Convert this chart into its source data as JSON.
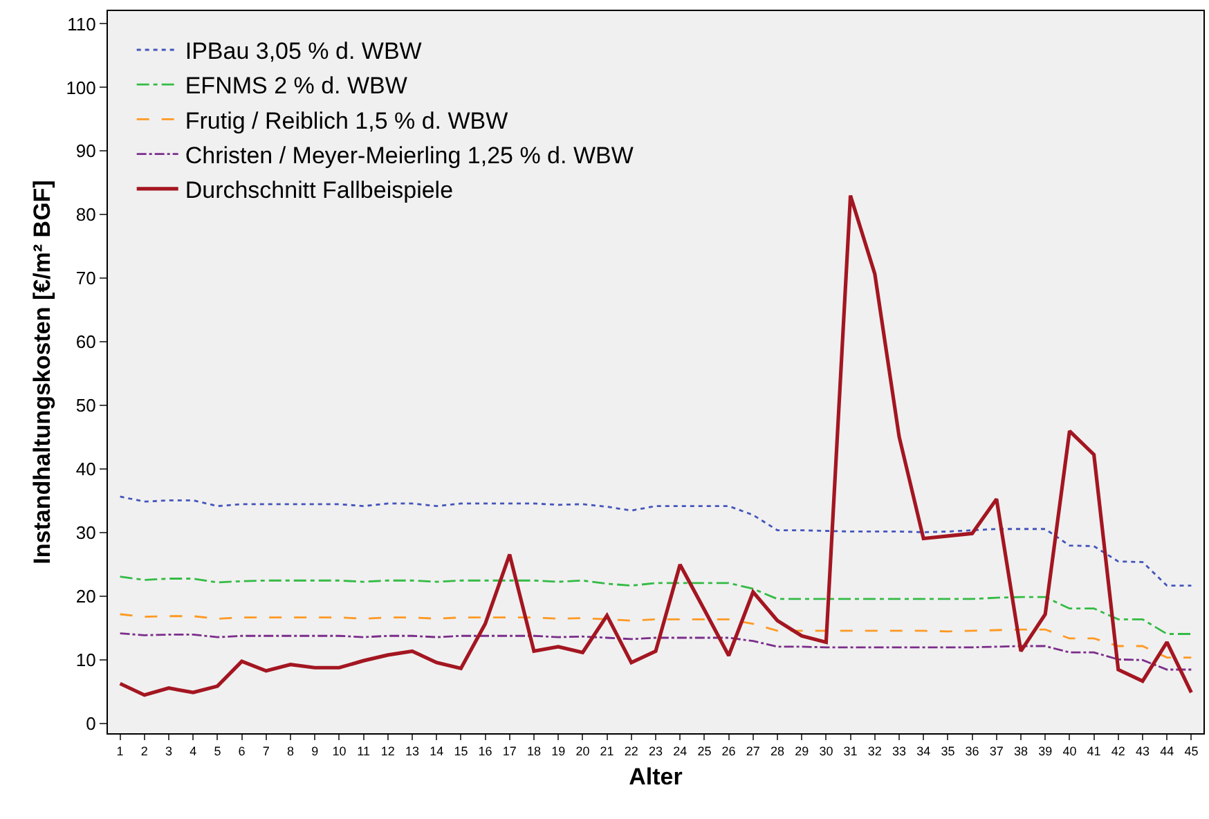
{
  "chart_data": {
    "type": "line",
    "xlabel": "Alter",
    "ylabel": "Instandhaltungskosten [€/m² BGF]",
    "x": [
      1,
      2,
      3,
      4,
      5,
      6,
      7,
      8,
      9,
      10,
      11,
      12,
      13,
      14,
      15,
      16,
      17,
      18,
      19,
      20,
      21,
      22,
      23,
      24,
      25,
      26,
      27,
      28,
      29,
      30,
      31,
      32,
      33,
      34,
      35,
      36,
      37,
      38,
      39,
      40,
      41,
      42,
      43,
      44,
      45
    ],
    "xlim": [
      0.5,
      45.5
    ],
    "xticks": [
      1,
      2,
      3,
      4,
      5,
      6,
      7,
      8,
      9,
      10,
      11,
      12,
      13,
      14,
      15,
      16,
      17,
      18,
      19,
      20,
      21,
      22,
      23,
      24,
      25,
      26,
      27,
      28,
      29,
      30,
      31,
      32,
      33,
      34,
      35,
      36,
      37,
      38,
      39,
      40,
      41,
      42,
      43,
      44,
      45
    ],
    "ylim": [
      -1.5,
      112
    ],
    "yticks": [
      0,
      10,
      20,
      30,
      40,
      50,
      60,
      70,
      80,
      90,
      100,
      110
    ],
    "grid": false,
    "legend": "top left",
    "marker": "none",
    "series": [
      {
        "name": "IPBau 3,05 % d. WBW",
        "color": "#4455bb",
        "line_style": "dotted",
        "values": [
          35.7,
          34.9,
          35.1,
          35.1,
          34.2,
          34.5,
          34.5,
          34.5,
          34.5,
          34.5,
          34.2,
          34.6,
          34.6,
          34.2,
          34.6,
          34.6,
          34.6,
          34.6,
          34.4,
          34.5,
          34.1,
          33.5,
          34.2,
          34.2,
          34.2,
          34.2,
          32.8,
          30.4,
          30.4,
          30.3,
          30.2,
          30.2,
          30.2,
          30.1,
          30.2,
          30.4,
          30.6,
          30.6,
          30.6,
          28.0,
          27.9,
          25.5,
          25.4,
          21.7,
          21.7
        ]
      },
      {
        "name": "EFNMS 2 % d. WBW",
        "color": "#33bb44",
        "line_style": "dashdot",
        "values": [
          23.1,
          22.6,
          22.8,
          22.8,
          22.2,
          22.4,
          22.5,
          22.5,
          22.5,
          22.5,
          22.3,
          22.5,
          22.5,
          22.3,
          22.5,
          22.5,
          22.5,
          22.5,
          22.3,
          22.5,
          22.0,
          21.7,
          22.1,
          22.1,
          22.1,
          22.1,
          21.2,
          19.6,
          19.6,
          19.6,
          19.6,
          19.6,
          19.6,
          19.6,
          19.6,
          19.6,
          19.8,
          19.9,
          19.9,
          18.1,
          18.1,
          16.4,
          16.4,
          14.1,
          14.1
        ]
      },
      {
        "name": "Frutig / Reiblich 1,5 % d. WBW",
        "color": "#ff9922",
        "line_style": "dashed",
        "values": [
          17.2,
          16.8,
          16.9,
          16.9,
          16.5,
          16.7,
          16.7,
          16.7,
          16.7,
          16.7,
          16.5,
          16.7,
          16.7,
          16.5,
          16.7,
          16.7,
          16.7,
          16.7,
          16.5,
          16.6,
          16.4,
          16.2,
          16.4,
          16.4,
          16.4,
          16.4,
          15.7,
          14.6,
          14.6,
          14.6,
          14.6,
          14.6,
          14.6,
          14.6,
          14.5,
          14.6,
          14.7,
          14.8,
          14.8,
          13.4,
          13.4,
          12.2,
          12.2,
          10.4,
          10.4
        ]
      },
      {
        "name": "Christen / Meyer-Meierling 1,25 % d. WBW",
        "color": "#7b2d8b",
        "line_style": "longdashdot",
        "values": [
          14.2,
          13.9,
          14.0,
          14.0,
          13.6,
          13.8,
          13.8,
          13.8,
          13.8,
          13.8,
          13.6,
          13.8,
          13.8,
          13.6,
          13.8,
          13.8,
          13.8,
          13.8,
          13.6,
          13.7,
          13.5,
          13.3,
          13.5,
          13.5,
          13.5,
          13.5,
          13.0,
          12.1,
          12.1,
          12.0,
          12.0,
          12.0,
          12.0,
          12.0,
          12.0,
          12.0,
          12.1,
          12.2,
          12.2,
          11.2,
          11.2,
          10.1,
          10.0,
          8.5,
          8.5
        ]
      },
      {
        "name": "Durchschnitt Fallbeispiele",
        "color": "#a31621",
        "line_style": "solid",
        "values": [
          6.3,
          4.5,
          5.6,
          4.9,
          5.9,
          9.8,
          8.3,
          9.3,
          8.8,
          8.8,
          9.9,
          10.8,
          11.4,
          9.6,
          8.7,
          15.7,
          26.6,
          11.4,
          12.1,
          11.2,
          17.0,
          9.6,
          11.4,
          25.0,
          17.9,
          10.7,
          20.7,
          16.2,
          13.8,
          12.8,
          83.0,
          70.7,
          45.1,
          29.1,
          29.5,
          29.9,
          35.3,
          11.4,
          17.2,
          46.0,
          42.3,
          8.5,
          6.7,
          12.8,
          4.9
        ]
      }
    ]
  }
}
